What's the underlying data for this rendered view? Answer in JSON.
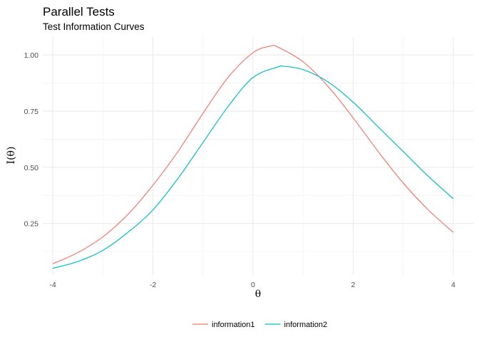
{
  "chart_data": {
    "type": "line",
    "title": "Parallel Tests",
    "subtitle": "Test Information Curves",
    "xlabel": "θ",
    "ylabel": "I(θ)",
    "xlim": [
      -4.2,
      4.4
    ],
    "ylim": [
      0.02,
      1.08
    ],
    "x_ticks": [
      -4,
      -2,
      0,
      2,
      4
    ],
    "x_tick_labels": [
      "-4",
      "-2",
      "0",
      "2",
      "4"
    ],
    "y_ticks": [
      0.25,
      0.5,
      0.75,
      1.0
    ],
    "y_tick_labels": [
      "0.25",
      "0.50",
      "0.75",
      "1.00"
    ],
    "grid": true,
    "legend_position": "bottom",
    "series": [
      {
        "name": "information1",
        "color": "#F8766D",
        "x": [
          -4.0,
          -3.5,
          -3.0,
          -2.5,
          -2.0,
          -1.5,
          -1.0,
          -0.5,
          0.0,
          0.35,
          0.5,
          1.0,
          1.5,
          2.0,
          2.5,
          3.0,
          3.5,
          4.0
        ],
        "y": [
          0.07,
          0.12,
          0.19,
          0.29,
          0.42,
          0.57,
          0.74,
          0.9,
          1.01,
          1.04,
          1.035,
          0.97,
          0.86,
          0.72,
          0.57,
          0.43,
          0.31,
          0.21
        ]
      },
      {
        "name": "information2",
        "color": "#00BFC4",
        "x": [
          -4.0,
          -3.5,
          -3.0,
          -2.5,
          -2.0,
          -1.5,
          -1.0,
          -0.5,
          0.0,
          0.5,
          0.6,
          1.0,
          1.5,
          2.0,
          2.5,
          3.0,
          3.5,
          4.0
        ],
        "y": [
          0.05,
          0.08,
          0.13,
          0.21,
          0.31,
          0.45,
          0.61,
          0.77,
          0.9,
          0.947,
          0.95,
          0.935,
          0.88,
          0.79,
          0.68,
          0.57,
          0.46,
          0.36
        ]
      }
    ]
  }
}
